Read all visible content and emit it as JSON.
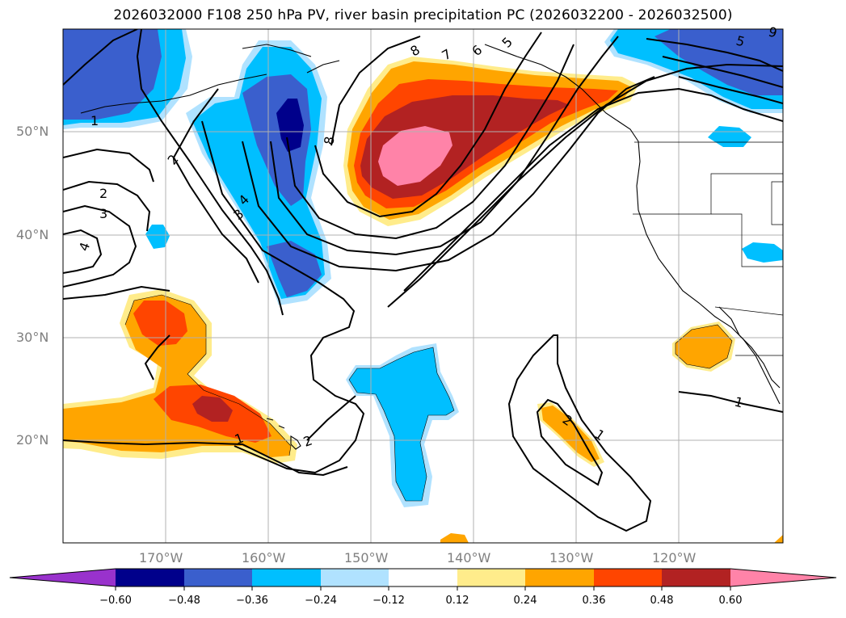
{
  "title": "2026032000 F108 250 hPa PV, river basin precipitation PC (2026032200 - 2026032500)",
  "lat_labels": [
    "50°N",
    "40°N",
    "30°N",
    "20°N"
  ],
  "lon_labels": [
    "170°W",
    "160°W",
    "150°W",
    "140°W",
    "130°W",
    "120°W"
  ],
  "colorbar": {
    "ticks": [
      "−0.60",
      "−0.48",
      "−0.36",
      "−0.24",
      "−0.12",
      "0.12",
      "0.24",
      "0.36",
      "0.48",
      "0.60"
    ],
    "colors": [
      "#9932cc",
      "#00008b",
      "#3a5fcd",
      "#00bfff",
      "#b0e2ff",
      "#ffffff",
      "#ffec8b",
      "#ffa500",
      "#ff4500",
      "#b22222",
      "#ff83a8"
    ]
  },
  "contour_labels": [
    "8",
    "7",
    "6",
    "5",
    "8",
    "4",
    "3",
    "2",
    "2",
    "3",
    "4",
    "1",
    "2",
    "1",
    "1",
    "2",
    "1",
    "5",
    "9"
  ],
  "colors": {
    "dark_blue": "#00008b",
    "mid_blue": "#3a5fcd",
    "sky_blue": "#00bfff",
    "light_blue": "#b0e2ff",
    "light_yellow": "#ffec8b",
    "orange": "#ffa500",
    "red_orange": "#ff4500",
    "firebrick": "#b22222",
    "pink": "#ff83a8",
    "grid": "#b0b0b0"
  }
}
